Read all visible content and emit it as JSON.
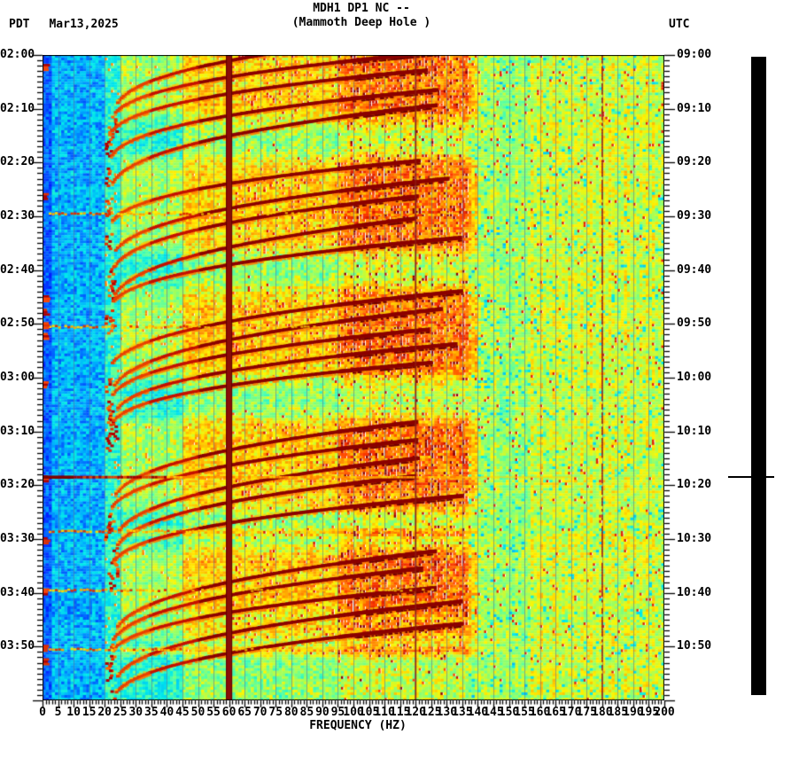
{
  "header": {
    "timezone_left": "PDT",
    "date": "Mar13,2025",
    "timezone_right": "UTC"
  },
  "chart_data": {
    "type": "heatmap",
    "subtype": "seismic-spectrogram",
    "title": "MDH1 DP1 NC --",
    "subtitle": "(Mammoth Deep Hole )",
    "station": "MDH1 DP1 NC",
    "station_name": "Mammoth Deep Hole",
    "date": "Mar13,2025",
    "xlabel": "FREQUENCY (HZ)",
    "x_range_hz": [
      0,
      200
    ],
    "x_major_tick_hz": 5,
    "x_minor_tick_hz": 1,
    "x_tick_labels": [
      "0",
      "5",
      "10",
      "15",
      "20",
      "25",
      "30",
      "35",
      "40",
      "45",
      "50",
      "55",
      "60",
      "65",
      "70",
      "75",
      "80",
      "85",
      "90",
      "95",
      "100",
      "105",
      "110",
      "115",
      "120",
      "125",
      "130",
      "135",
      "140",
      "145",
      "150",
      "155",
      "160",
      "165",
      "170",
      "175",
      "180",
      "185",
      "190",
      "195",
      "200"
    ],
    "y_axis_left": {
      "timezone": "PDT",
      "start": "02:00",
      "end": "04:00",
      "major_tick_min": 10,
      "minor_tick_min": 1,
      "labels": [
        "02:00",
        "02:10",
        "02:20",
        "02:30",
        "02:40",
        "02:50",
        "03:00",
        "03:10",
        "03:20",
        "03:30",
        "03:40",
        "03:50"
      ]
    },
    "y_axis_right": {
      "timezone": "UTC",
      "labels": [
        "09:00",
        "09:10",
        "09:20",
        "09:30",
        "09:40",
        "09:50",
        "10:00",
        "10:10",
        "10:20",
        "10:30",
        "10:40",
        "10:50"
      ]
    },
    "duration_min": 120,
    "colormap": "jet",
    "grid_hz_step": 5,
    "mains_line": {
      "freq_hz": 60,
      "width_hz": 2,
      "color": "#8a0d08",
      "harmonics_hz": [
        120,
        180
      ]
    },
    "broadband_event_min": 78.5,
    "onset_burst_min": [
      29.5,
      50.5,
      88.5,
      99.5,
      110.5
    ],
    "edge_blob_min": [
      2,
      26,
      45,
      47.5,
      50,
      52,
      61,
      78.5,
      90,
      99.5,
      110,
      112.5
    ],
    "tremor": {
      "description": "repeating gliding tones: each event sweeps from ~135 Hz down to ~22 Hz over ~15 min, dark-red arcs with orange fringes, tails stacking near 22 Hz",
      "cluster_start_min": [
        -4,
        20,
        44,
        68,
        92
      ],
      "arcs_per_cluster": 5,
      "arc_spacing_min": 3.4,
      "f_start_hz": 135,
      "f_end_hz": 22,
      "glide_min": 15,
      "glide_power": 2.5
    },
    "background_bands": [
      {
        "f0": 0,
        "f1": 3,
        "base": 0.1,
        "rand": 0.13
      },
      {
        "f0": 3,
        "f1": 20,
        "base": 0.16,
        "rand": 0.22
      },
      {
        "f0": 20,
        "f1": 45,
        "base": 0.32,
        "rand": 0.16
      },
      {
        "f0": 45,
        "f1": 95,
        "base": 0.42,
        "rand": 0.18
      },
      {
        "f0": 95,
        "f1": 137,
        "base": 0.47,
        "rand": 0.18
      },
      {
        "f0": 137,
        "f1": 157,
        "base": 0.46,
        "rand": 0.15
      },
      {
        "f0": 157,
        "f1": 200,
        "base": 0.51,
        "rand": 0.15
      }
    ],
    "trace_panel": {
      "style": "clipped seismogram (solid black column)",
      "marker_min": 78.5
    },
    "notable_features": [
      "solid dark-red vertical band at 60 Hz (mains hum)",
      "thin dark-red lines at 120 Hz and 180 Hz harmonics",
      "broadband horizontal streak at 03:18 PDT / 10:18 UTC",
      "faint slate-blue vertical gridlines every 5 Hz"
    ],
    "style": {
      "grid_color": "rgba(85,105,150,0.55)",
      "arc_core_color": "#8b0000",
      "text_color": "#000000",
      "background": "#ffffff"
    }
  }
}
